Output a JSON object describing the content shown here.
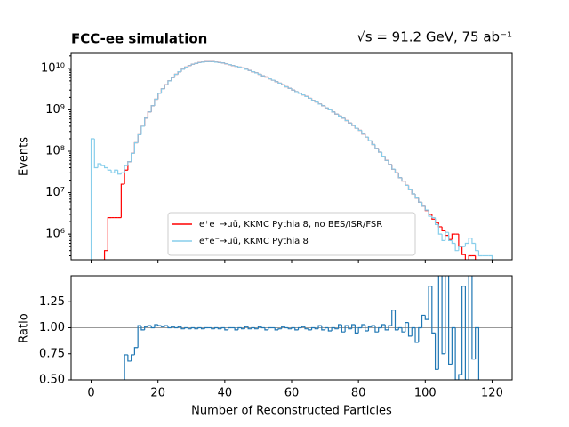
{
  "chart_data": [
    {
      "type": "step-histogram",
      "title": "FCC-ee simulation",
      "subtitle": "√s = 91.2 GeV, 75 ab⁻¹",
      "ylabel": "Events",
      "yscale": "log",
      "legend": "lower center",
      "bins": [
        0,
        1,
        2,
        3,
        4,
        5,
        6,
        7,
        8,
        9,
        10,
        11,
        12,
        13,
        14,
        15,
        16,
        17,
        18,
        19,
        20,
        21,
        22,
        23,
        24,
        25,
        26,
        27,
        28,
        29,
        30,
        31,
        32,
        33,
        34,
        35,
        36,
        37,
        38,
        39,
        40,
        41,
        42,
        43,
        44,
        45,
        46,
        47,
        48,
        49,
        50,
        51,
        52,
        53,
        54,
        55,
        56,
        57,
        58,
        59,
        60,
        61,
        62,
        63,
        64,
        65,
        66,
        67,
        68,
        69,
        70,
        71,
        72,
        73,
        74,
        75,
        76,
        77,
        78,
        79,
        80,
        81,
        82,
        83,
        84,
        85,
        86,
        87,
        88,
        89,
        90,
        91,
        92,
        93,
        94,
        95,
        96,
        97,
        98,
        99,
        100,
        101,
        102,
        103,
        104,
        105,
        106,
        107,
        108,
        109,
        110,
        111,
        112,
        113,
        114,
        115,
        116,
        117,
        118,
        119,
        120
      ],
      "xlim": [
        -6,
        126
      ],
      "xticks": [
        0,
        20,
        40,
        60,
        80,
        100,
        120
      ],
      "ylim": [
        240000,
        23000000000
      ],
      "yticks": [
        {
          "value": 1000000,
          "label": "10⁶"
        },
        {
          "value": 10000000,
          "label": "10⁷"
        },
        {
          "value": 100000000,
          "label": "10⁸"
        },
        {
          "value": 1000000000,
          "label": "10⁹"
        },
        {
          "value": 10000000000,
          "label": "10¹⁰"
        }
      ],
      "series": [
        {
          "name": "e⁺e⁻→uū, KKMC Pythia 8, no BES/ISR/FSR",
          "color": "#ff0000",
          "values": [
            0,
            0,
            0,
            0,
            400000.0,
            2500000.0,
            2500000.0,
            2500000.0,
            2500000.0,
            16000000.0,
            35000000.0,
            56000000.0,
            89000000.0,
            160000000.0,
            250000000.0,
            400000000.0,
            630000000.0,
            890000000.0,
            1260000000.0,
            1800000000.0,
            2500000000.0,
            3200000000.0,
            4000000000.0,
            5000000000.0,
            6000000000.0,
            7200000000.0,
            8300000000.0,
            9500000000.0,
            10700000000.0,
            11700000000.0,
            12600000000.0,
            13200000000.0,
            13800000000.0,
            14100000000.0,
            14500000000.0,
            14500000000.0,
            14500000000.0,
            14100000000.0,
            13800000000.0,
            13500000000.0,
            12900000000.0,
            12300000000.0,
            11700000000.0,
            11200000000.0,
            10700000000.0,
            10200000000.0,
            9500000000.0,
            8900000000.0,
            8300000000.0,
            7800000000.0,
            7200000000.0,
            6600000000.0,
            6200000000.0,
            5600000000.0,
            5200000000.0,
            4800000000.0,
            4400000000.0,
            4000000000.0,
            3600000000.0,
            3300000000.0,
            3000000000.0,
            2750000000.0,
            2500000000.0,
            2300000000.0,
            2100000000.0,
            1900000000.0,
            1700000000.0,
            1550000000.0,
            1380000000.0,
            1260000000.0,
            1120000000.0,
            1000000000.0,
            890000000.0,
            790000000.0,
            710000000.0,
            630000000.0,
            550000000.0,
            480000000.0,
            420000000.0,
            360000000.0,
            320000000.0,
            260000000.0,
            220000000.0,
            180000000.0,
            145000000.0,
            117000000.0,
            95000000.0,
            76000000.0,
            60000000.0,
            48000000.0,
            37000000.0,
            30000000.0,
            23000000.0,
            19000000.0,
            15000000.0,
            11700000.0,
            9300000.0,
            7400000.0,
            5900000.0,
            4700000.0,
            3700000.0,
            3000000.0,
            2300000.0,
            1900000.0,
            1500000.0,
            1200000.0,
            930000.0,
            740000.0,
            1000000.0,
            1000000.0,
            500000.0,
            320000.0,
            0,
            300000.0,
            300000.0,
            0,
            0,
            0,
            0,
            0
          ]
        },
        {
          "name": "e⁺e⁻→uū, KKMC Pythia 8",
          "color": "#87ceeb",
          "values": [
            200000000.0,
            40000000.0,
            50000000.0,
            45000000.0,
            40000000.0,
            35000000.0,
            30000000.0,
            35000000.0,
            28000000.0,
            30000000.0,
            45000000.0,
            56000000.0,
            89000000.0,
            160000000.0,
            250000000.0,
            400000000.0,
            630000000.0,
            890000000.0,
            1260000000.0,
            1800000000.0,
            2500000000.0,
            3200000000.0,
            4000000000.0,
            5000000000.0,
            6000000000.0,
            7200000000.0,
            8300000000.0,
            9500000000.0,
            10700000000.0,
            11700000000.0,
            12600000000.0,
            13200000000.0,
            13800000000.0,
            14100000000.0,
            14500000000.0,
            14500000000.0,
            14500000000.0,
            14100000000.0,
            13800000000.0,
            13500000000.0,
            12900000000.0,
            12300000000.0,
            11700000000.0,
            11200000000.0,
            10700000000.0,
            10200000000.0,
            9500000000.0,
            8900000000.0,
            8300000000.0,
            7800000000.0,
            7200000000.0,
            6600000000.0,
            6200000000.0,
            5600000000.0,
            5200000000.0,
            4800000000.0,
            4400000000.0,
            4000000000.0,
            3600000000.0,
            3300000000.0,
            3000000000.0,
            2750000000.0,
            2500000000.0,
            2300000000.0,
            2100000000.0,
            1900000000.0,
            1700000000.0,
            1550000000.0,
            1380000000.0,
            1260000000.0,
            1120000000.0,
            1000000000.0,
            890000000.0,
            790000000.0,
            710000000.0,
            630000000.0,
            550000000.0,
            480000000.0,
            420000000.0,
            360000000.0,
            320000000.0,
            260000000.0,
            220000000.0,
            180000000.0,
            145000000.0,
            117000000.0,
            95000000.0,
            76000000.0,
            60000000.0,
            48000000.0,
            37000000.0,
            30000000.0,
            23000000.0,
            19000000.0,
            15000000.0,
            11700000.0,
            9300000.0,
            7400000.0,
            5900000.0,
            4700000.0,
            3800000.0,
            2700000.0,
            2500000.0,
            1700000.0,
            1000000.0,
            700000.0,
            1100000.0,
            700000.0,
            600000.0,
            400000.0,
            500000.0,
            500000.0,
            600000.0,
            800000.0,
            600000.0,
            400000.0,
            300000.0,
            300000.0,
            300000.0,
            300000.0
          ]
        }
      ]
    },
    {
      "type": "step-histogram",
      "xlabel": "Number of Reconstructed Particles",
      "ylabel": "Ratio",
      "hline": 1,
      "bins": [
        0,
        1,
        2,
        3,
        4,
        5,
        6,
        7,
        8,
        9,
        10,
        11,
        12,
        13,
        14,
        15,
        16,
        17,
        18,
        19,
        20,
        21,
        22,
        23,
        24,
        25,
        26,
        27,
        28,
        29,
        30,
        31,
        32,
        33,
        34,
        35,
        36,
        37,
        38,
        39,
        40,
        41,
        42,
        43,
        44,
        45,
        46,
        47,
        48,
        49,
        50,
        51,
        52,
        53,
        54,
        55,
        56,
        57,
        58,
        59,
        60,
        61,
        62,
        63,
        64,
        65,
        66,
        67,
        68,
        69,
        70,
        71,
        72,
        73,
        74,
        75,
        76,
        77,
        78,
        79,
        80,
        81,
        82,
        83,
        84,
        85,
        86,
        87,
        88,
        89,
        90,
        91,
        92,
        93,
        94,
        95,
        96,
        97,
        98,
        99,
        100,
        101,
        102,
        103,
        104,
        105,
        106,
        107,
        108,
        109,
        110,
        111,
        112,
        113,
        114,
        115,
        116,
        117,
        118,
        119,
        120
      ],
      "xlim": [
        -6,
        126
      ],
      "xticks": [
        0,
        20,
        40,
        60,
        80,
        100,
        120
      ],
      "ylim": [
        0.5,
        1.5
      ],
      "yticks": [
        {
          "value": 0.5,
          "label": "0.50"
        },
        0.75,
        {
          "value": 1,
          "label": "1.00"
        },
        1.25
      ],
      "series": [
        {
          "color": "#1f77b4",
          "values": [
            null,
            null,
            null,
            null,
            null,
            null,
            null,
            null,
            null,
            null,
            0.74,
            0.68,
            0.74,
            0.81,
            1.02,
            0.98,
            1.01,
            1.02,
            1.0,
            1.03,
            1.02,
            1.01,
            1.02,
            1.0,
            1.01,
            1.0,
            1.01,
            0.99,
            1.0,
            0.99,
            1.0,
            0.99,
            1.0,
            0.99,
            1.0,
            1.0,
            0.99,
            1.0,
            0.99,
            1.0,
            0.98,
            1.0,
            1.0,
            0.98,
            1.0,
            0.99,
            1.01,
            0.99,
            1.0,
            0.99,
            1.01,
            1.0,
            0.98,
            1.0,
            1.0,
            0.98,
            0.99,
            1.01,
            1.0,
            0.99,
            1.0,
            0.98,
            1.0,
            1.01,
            0.99,
            0.98,
            1.0,
            0.99,
            1.02,
            0.98,
            1.0,
            0.97,
            1.0,
            0.99,
            1.03,
            0.96,
            1.02,
            0.99,
            1.03,
            0.95,
            1.0,
            1.03,
            0.97,
            1.01,
            1.02,
            0.96,
            1.0,
            1.03,
            0.98,
            1.02,
            1.17,
            0.98,
            1.0,
            0.96,
            1.05,
            0.92,
            1.0,
            0.86,
            1.0,
            1.12,
            1.08,
            1.4,
            0.95,
            0.6,
            1.9,
            0.75,
            1.9,
            0.65,
            1.0,
            0.5,
            0.55,
            1.4,
            0.5,
            1.9,
            0.7,
            1.0,
            null,
            null,
            null,
            null
          ]
        }
      ]
    }
  ]
}
